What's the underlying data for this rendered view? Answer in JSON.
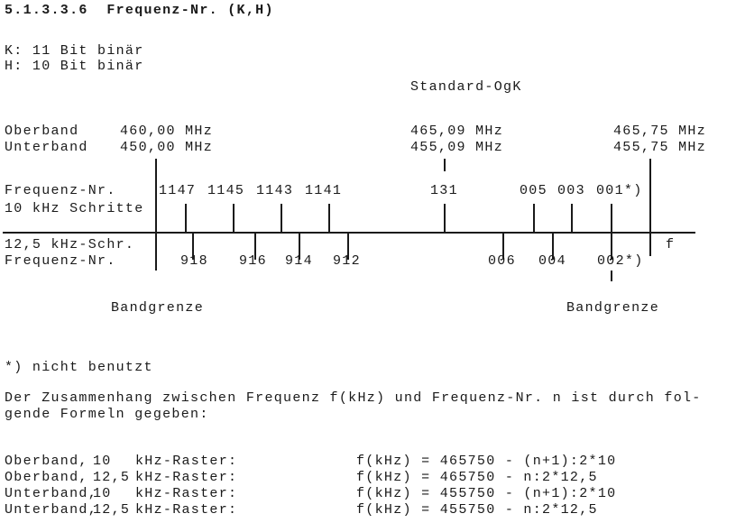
{
  "section_title": "5.1.3.3.6  Frequenz-Nr. (K,H)",
  "k_line": "K: 11 Bit binär",
  "h_line": "H: 10 Bit binär",
  "diagram": {
    "standard_label": "Standard-OgK",
    "oberband_label": "Oberband",
    "unterband_label": "Unterband",
    "oberband_start": "460,00 MHz",
    "unterband_start": "450,00 MHz",
    "oberband_std": "465,09 MHz",
    "unterband_std": "455,09 MHz",
    "oberband_end": "465,75 MHz",
    "unterband_end": "455,75 MHz",
    "row10_label1": "Frequenz-Nr.",
    "row10_label2": "10 kHz Schritte",
    "row10_numbers": [
      "1147",
      "1145",
      "1143",
      "1141",
      "131",
      "005",
      "003",
      "001*)"
    ],
    "row125_label1": "12,5 kHz-Schr.",
    "row125_label2": "Frequenz-Nr.",
    "row125_numbers": [
      "918",
      "916",
      "914",
      "912",
      "006",
      "004",
      "002*)"
    ],
    "axis_label": "f",
    "band_limit_left": "Bandgrenze",
    "band_limit_right": "Bandgrenze"
  },
  "footnote": "*) nicht benutzt",
  "paragraph_line1": "Der Zusammenhang zwischen Frequenz f(kHz) und Frequenz-Nr. n ist durch fol-",
  "paragraph_line2": "gende Formeln gegeben:",
  "formulas": [
    {
      "band": "Oberband,",
      "step": "10",
      "unit": "kHz-Raster:",
      "formula": "f(kHz) = 465750 - (n+1):2*10"
    },
    {
      "band": "Oberband,",
      "step": "12,5",
      "unit": "kHz-Raster:",
      "formula": "f(kHz) = 465750 - n:2*12,5"
    },
    {
      "band": "Unterband,",
      "step": "10",
      "unit": "kHz-Raster:",
      "formula": "f(kHz) = 455750 - (n+1):2*10"
    },
    {
      "band": "Unterband,",
      "step": "12,5",
      "unit": "kHz-Raster:",
      "formula": "f(kHz) = 455750 - n:2*12,5"
    }
  ]
}
